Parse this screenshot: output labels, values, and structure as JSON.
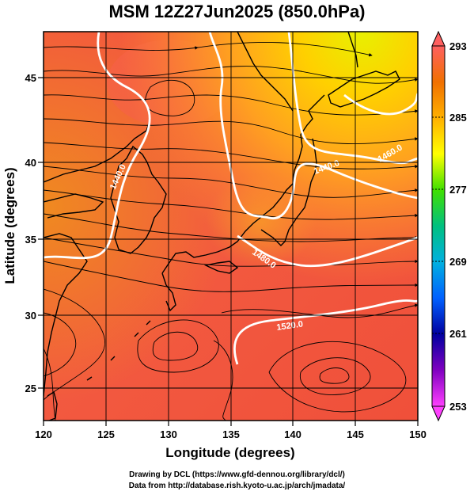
{
  "title": "MSM 12Z27Jun2025 (850.0hPa)",
  "map": {
    "xlabel": "Longitude (degrees)",
    "ylabel": "Latitude  (degrees)",
    "lon_range": [
      120,
      150
    ],
    "lat_range": [
      22.4,
      47.6
    ],
    "lon_ticks": [
      "120",
      "125",
      "130",
      "135",
      "140",
      "145",
      "150"
    ],
    "lat_ticks": [
      "25",
      "30",
      "35",
      "40",
      "45"
    ],
    "grid": true,
    "field": "temperature (K), filled",
    "overlays": [
      "streamlines (wind)",
      "geopotential height contours (white)",
      "coastlines"
    ]
  },
  "colorbar": {
    "min": 253,
    "max": 293,
    "labels": [
      "293",
      "285",
      "277",
      "269",
      "261",
      "253"
    ],
    "colors": [
      "#ff6060",
      "#f07000",
      "#ffb000",
      "#ffff00",
      "#40e000",
      "#00c080",
      "#00b0e0",
      "#0060ff",
      "#0000a0",
      "#8000c0",
      "#ff40ff"
    ]
  },
  "contours": [
    {
      "label": "1440.0"
    },
    {
      "label": "1460.0"
    },
    {
      "label": "1480.0"
    },
    {
      "label": "1480.0"
    },
    {
      "label": "1520.0"
    }
  ],
  "credits": {
    "line1": "Drawing by DCL (https://www.gfd-dennou.org/library/dcl/)",
    "line2": "Data from http://database.rish.kyoto-u.ac.jp/arch/jmadata/"
  }
}
